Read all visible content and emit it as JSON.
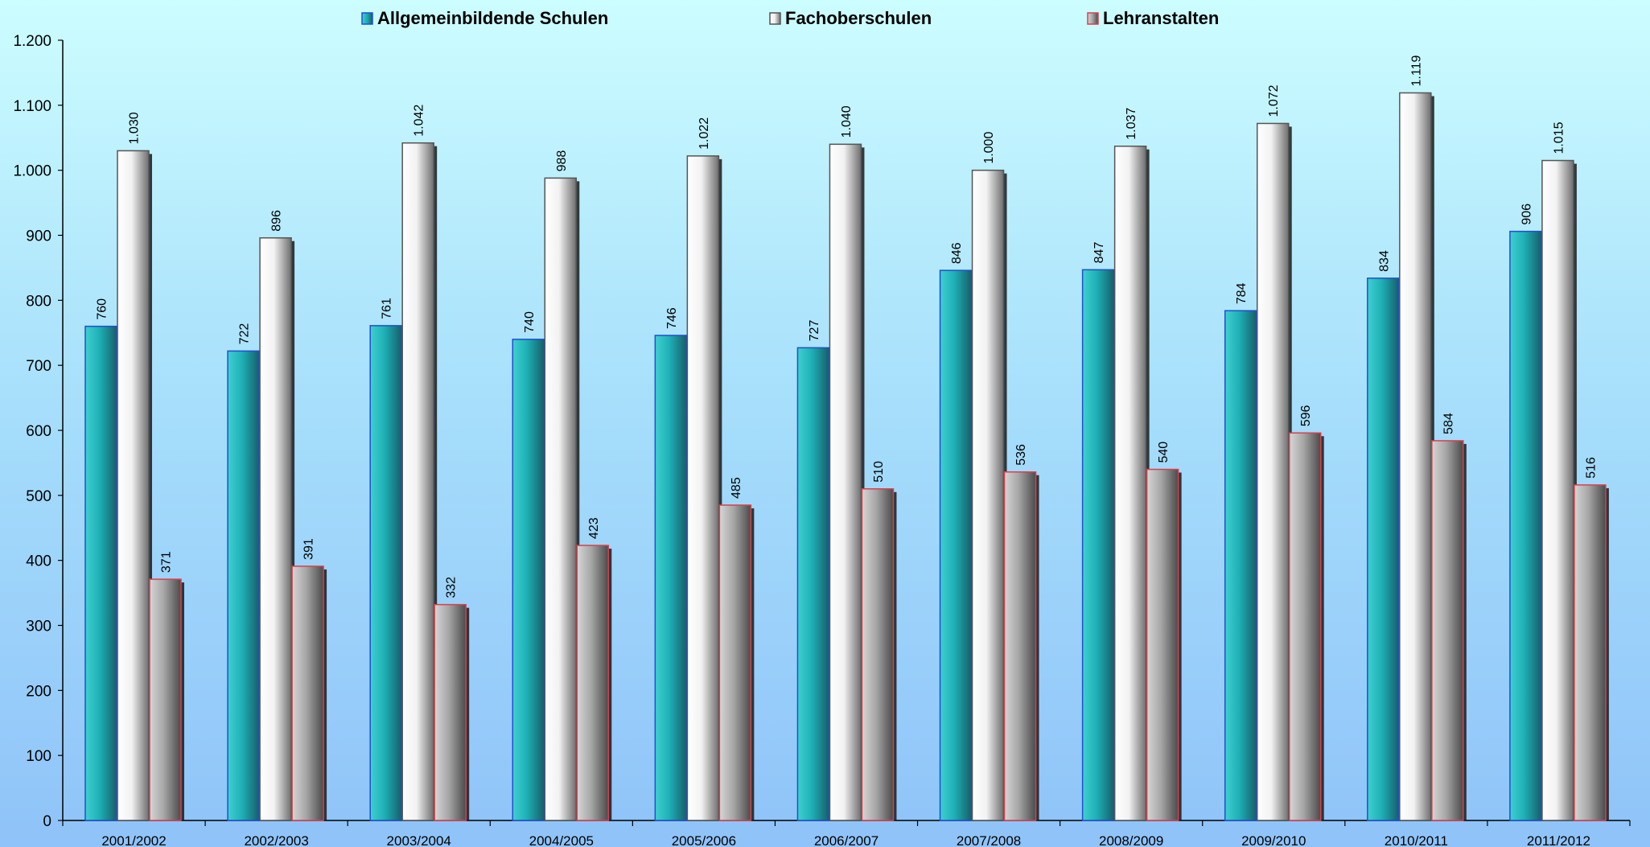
{
  "chart_data": {
    "type": "bar",
    "title": "",
    "xlabel": "",
    "ylabel": "",
    "ylim": [
      0,
      1200
    ],
    "yticks": [
      0,
      100,
      200,
      300,
      400,
      500,
      600,
      700,
      800,
      900,
      1000,
      1100,
      1200
    ],
    "ytick_labels": [
      "0",
      "100",
      "200",
      "300",
      "400",
      "500",
      "600",
      "700",
      "800",
      "900",
      "1.000",
      "1.100",
      "1.200"
    ],
    "grid": false,
    "legend_position": "top",
    "categories": [
      "2001/2002",
      "2002/2003",
      "2003/2004",
      "2004/2005",
      "2005/2006",
      "2006/2007",
      "2007/2008",
      "2008/2009",
      "2009/2010",
      "2010/2011",
      "2011/2012"
    ],
    "series": [
      {
        "name": "Allgemeinbildende Schulen",
        "color": "#1fb3b8",
        "border": "#1f4fd0",
        "values": [
          760,
          722,
          761,
          740,
          746,
          727,
          846,
          847,
          784,
          834,
          906
        ],
        "labels": [
          "760",
          "722",
          "761",
          "740",
          "746",
          "727",
          "846",
          "847",
          "784",
          "834",
          "906"
        ]
      },
      {
        "name": "Fachoberschulen",
        "color": "#e8e8e8",
        "border": "#555555",
        "values": [
          1030,
          896,
          1042,
          988,
          1022,
          1040,
          1000,
          1037,
          1072,
          1119,
          1015
        ],
        "labels": [
          "1.030",
          "896",
          "1.042",
          "988",
          "1.022",
          "1.040",
          "1.000",
          "1.037",
          "1.072",
          "1.119",
          "1.015"
        ]
      },
      {
        "name": "Lehranstalten",
        "color": "#a9a9a9",
        "border": "#d9404a",
        "values": [
          371,
          391,
          332,
          423,
          485,
          510,
          536,
          540,
          596,
          584,
          516
        ],
        "labels": [
          "371",
          "391",
          "332",
          "423",
          "485",
          "510",
          "536",
          "540",
          "596",
          "584",
          "516"
        ]
      }
    ]
  }
}
